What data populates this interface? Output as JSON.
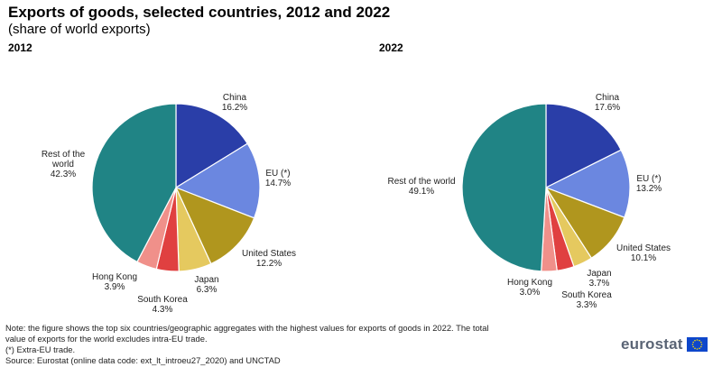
{
  "header": {
    "title": "Exports of goods, selected countries, 2012 and 2022",
    "subtitle": "(share of world exports)"
  },
  "chart_data": [
    {
      "type": "pie",
      "title": "2012",
      "unit": "%",
      "slices": [
        {
          "label": "China",
          "value": 16.2,
          "value_text": "16.2%",
          "color": "#2a3ea8"
        },
        {
          "label": "EU (*)",
          "value": 14.7,
          "value_text": "14.7%",
          "color": "#6b87e0"
        },
        {
          "label": "United States",
          "value": 12.2,
          "value_text": "12.2%",
          "color": "#b0961e"
        },
        {
          "label": "Japan",
          "value": 6.3,
          "value_text": "6.3%",
          "color": "#e5c95f"
        },
        {
          "label": "South Korea",
          "value": 4.3,
          "value_text": "4.3%",
          "color": "#e04040"
        },
        {
          "label": "Hong Kong",
          "value": 3.9,
          "value_text": "3.9%",
          "color": "#f0908a"
        },
        {
          "label": "Rest of the world",
          "value": 42.3,
          "value_text": "42.3%",
          "color": "#208485"
        }
      ]
    },
    {
      "type": "pie",
      "title": "2022",
      "unit": "%",
      "slices": [
        {
          "label": "China",
          "value": 17.6,
          "value_text": "17.6%",
          "color": "#2a3ea8"
        },
        {
          "label": "EU (*)",
          "value": 13.2,
          "value_text": "13.2%",
          "color": "#6b87e0"
        },
        {
          "label": "United States",
          "value": 10.1,
          "value_text": "10.1%",
          "color": "#b0961e"
        },
        {
          "label": "Japan",
          "value": 3.7,
          "value_text": "3.7%",
          "color": "#e5c95f"
        },
        {
          "label": "South Korea",
          "value": 3.3,
          "value_text": "3.3%",
          "color": "#e04040"
        },
        {
          "label": "Hong Kong",
          "value": 3.0,
          "value_text": "3.0%",
          "color": "#f0908a"
        },
        {
          "label": "Rest of the world",
          "value": 49.1,
          "value_text": "49.1%",
          "color": "#208485"
        }
      ]
    }
  ],
  "notes": {
    "line1": "Note: the figure shows the top six countries/geographic aggregates with the highest values for exports of goods in 2022. The total",
    "line2": "value of exports for the world excludes intra-EU trade.",
    "line3": "(*) Extra-EU trade.",
    "source": "Source: Eurostat (online data code: ext_lt_introeu27_2020) and UNCTAD"
  },
  "logo": {
    "text": "eurostat",
    "flag_color": "#0e47cb",
    "star_color": "#ffde00"
  }
}
